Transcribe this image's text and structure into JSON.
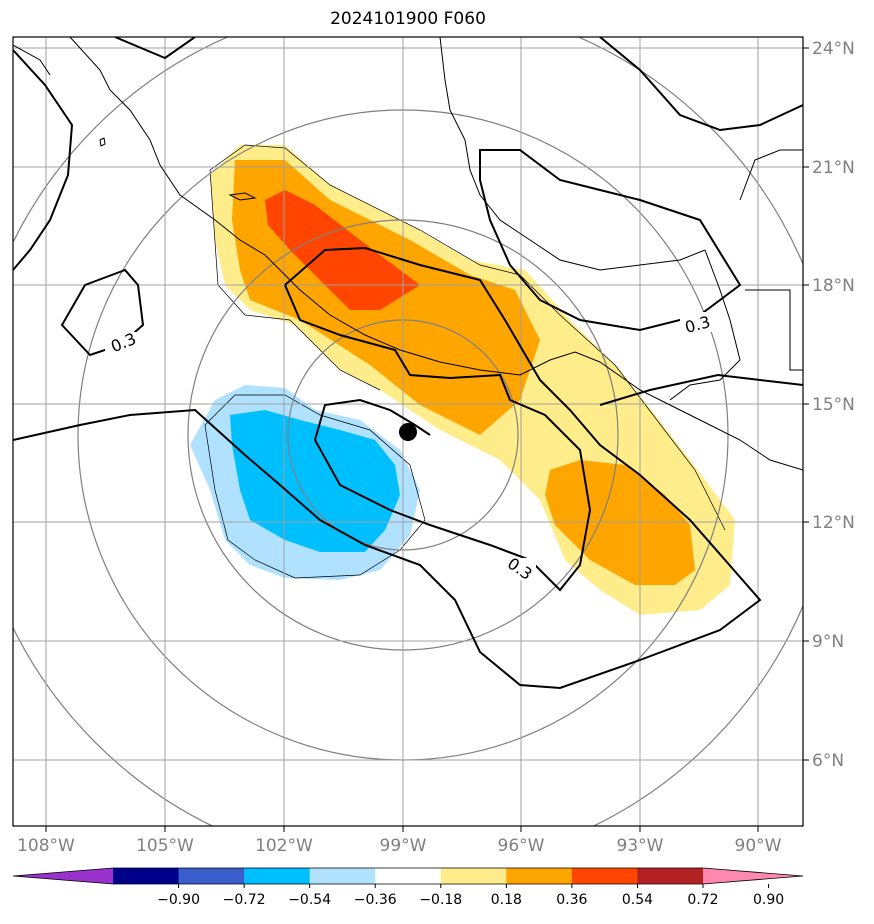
{
  "title": "2024101900 F060",
  "axes": {
    "lon_labels": [
      "108°W",
      "105°W",
      "102°W",
      "99°W",
      "96°W",
      "93°W",
      "90°W"
    ],
    "lat_labels": [
      "24°N",
      "21°N",
      "18°N",
      "15°N",
      "12°N",
      "9°N",
      "6°N"
    ]
  },
  "contour_labels": [
    "0.3",
    "0.3",
    "0.3"
  ],
  "colorbar": {
    "ticks": [
      "−0.90",
      "−0.72",
      "−0.54",
      "−0.36",
      "−0.18",
      "0.18",
      "0.36",
      "0.54",
      "0.72",
      "0.90"
    ],
    "colors": [
      "#9932cc",
      "#00008b",
      "#3a5fcd",
      "#00bfff",
      "#b0e2ff",
      "#ffffff",
      "#ffec8b",
      "#ffa500",
      "#ff4500",
      "#b22222",
      "#ff88b0"
    ]
  },
  "colors": {
    "axis_label": "#808080",
    "grid": "#a0a0a0",
    "range_ring": "#808080",
    "center_marker": "#000000"
  }
}
